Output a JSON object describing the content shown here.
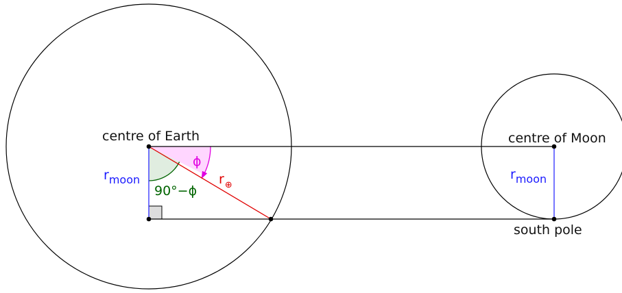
{
  "labels": {
    "centre_earth": "centre of Earth",
    "centre_moon": "centre of Moon",
    "south_pole": "south pole",
    "r_moon_left": {
      "main": "r",
      "sub": "moon"
    },
    "r_moon_right": {
      "main": "r",
      "sub": "moon"
    },
    "r_earth": {
      "main": "r",
      "sub": "⊕"
    },
    "phi": "ϕ",
    "complement": "90°−ϕ"
  },
  "colors": {
    "outline": "#000000",
    "r_moon": "#1a1aff",
    "r_earth": "#e00000",
    "phi": "#e000e0",
    "phi_fill": "#ffd6ff",
    "complement": "#006400",
    "complement_fill": "#e0ede0",
    "right_angle_fill": "#dddddd"
  }
}
